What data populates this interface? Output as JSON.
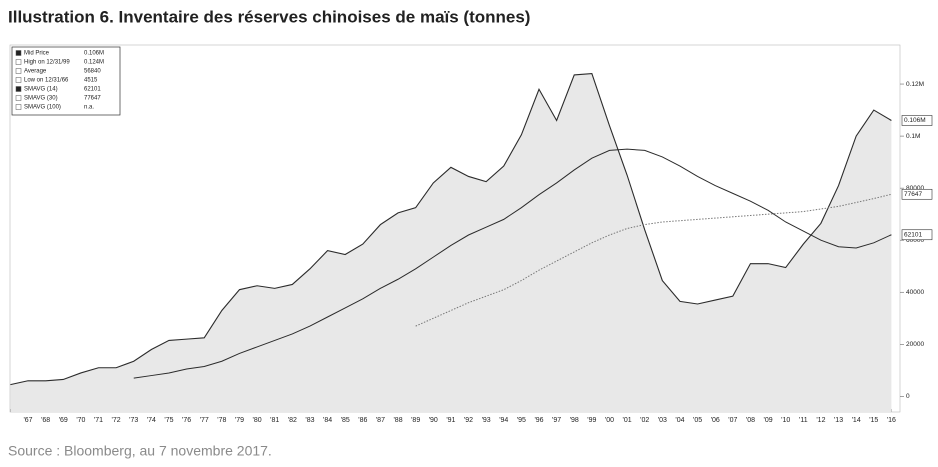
{
  "chart_data": {
    "type": "line",
    "title": "Illustration 6. Inventaire des réserves chinoises de maïs (tonnes)",
    "source": "Source : Bloomberg, au 7 novembre 2017.",
    "categories": [
      null,
      "'67",
      "'68",
      "'69",
      "'70",
      "'71",
      "'72",
      "'73",
      "'74",
      "'75",
      "'76",
      "'77",
      "'78",
      "'79",
      "'80",
      "'81",
      "'82",
      "'83",
      "'84",
      "'85",
      "'86",
      "'87",
      "'88",
      "'89",
      "'90",
      "'91",
      "'92",
      "'93",
      "'94",
      "'95",
      "'96",
      "'97",
      "'98",
      "'99",
      "'00",
      "'01",
      "'02",
      "'03",
      "'04",
      "'05",
      "'06",
      "'07",
      "'08",
      "'09",
      "'10",
      "'11",
      "'12",
      "'13",
      "'14",
      "'15",
      "'16"
    ],
    "series": [
      {
        "name": "Mid Price",
        "color": "#2b2b2b",
        "fill": "#e8e8e8",
        "dash": "none",
        "values": [
          4515,
          6000,
          6000,
          6500,
          9000,
          11000,
          11000,
          13500,
          18000,
          21500,
          22000,
          22500,
          33000,
          41000,
          42500,
          41500,
          43000,
          49000,
          56000,
          54500,
          58500,
          66000,
          70500,
          72500,
          82000,
          88000,
          84500,
          82500,
          88500,
          100500,
          118000,
          106000,
          123500,
          124000,
          104000,
          85000,
          64000,
          44500,
          36500,
          35500,
          37000,
          38500,
          51000,
          51000,
          49500,
          58500,
          66500,
          81000,
          100000,
          110000,
          106000
        ]
      },
      {
        "name": "SMAVG (14)",
        "color": "#2b2b2b",
        "dash": "none",
        "values": [
          null,
          null,
          null,
          null,
          null,
          null,
          null,
          7000,
          8000,
          9000,
          10500,
          11500,
          13500,
          16500,
          19000,
          21500,
          24000,
          27000,
          30500,
          34000,
          37500,
          41500,
          45000,
          49000,
          53500,
          58000,
          62000,
          65000,
          68000,
          72500,
          77500,
          82000,
          87000,
          91500,
          94500,
          95000,
          94500,
          92000,
          88500,
          84500,
          81000,
          78000,
          75000,
          71500,
          67000,
          63500,
          60000,
          57500,
          57000,
          59000,
          62101
        ]
      },
      {
        "name": "SMAVG (30)",
        "color": "#777777",
        "dash": "1.5 1.5",
        "values": [
          null,
          null,
          null,
          null,
          null,
          null,
          null,
          null,
          null,
          null,
          null,
          null,
          null,
          null,
          null,
          null,
          null,
          null,
          null,
          null,
          null,
          null,
          null,
          27000,
          30000,
          33000,
          36000,
          38500,
          41000,
          44500,
          48500,
          52000,
          55500,
          59000,
          62000,
          64500,
          66000,
          67000,
          67500,
          68000,
          68500,
          69000,
          69500,
          70000,
          70500,
          71000,
          72000,
          73000,
          74500,
          76000,
          77647
        ]
      }
    ],
    "legend": [
      {
        "label": "Mid Price",
        "value": "0.106M"
      },
      {
        "label": "High on 12/31/99",
        "value": "0.124M"
      },
      {
        "label": "Average",
        "value": "56840"
      },
      {
        "label": "Low on 12/31/66",
        "value": "4515"
      },
      {
        "label": "SMAVG (14)",
        "value": "62101"
      },
      {
        "label": "SMAVG (30)",
        "value": "77647"
      },
      {
        "label": "SMAVG (100)",
        "value": "n.a."
      }
    ],
    "ylim": [
      -6000,
      135000
    ],
    "yticks": [
      0,
      20000,
      40000,
      60000,
      80000,
      {
        "value": 100000,
        "label": "0.1M"
      },
      {
        "value": 120000,
        "label": "0.12M"
      }
    ],
    "grid": false
  }
}
